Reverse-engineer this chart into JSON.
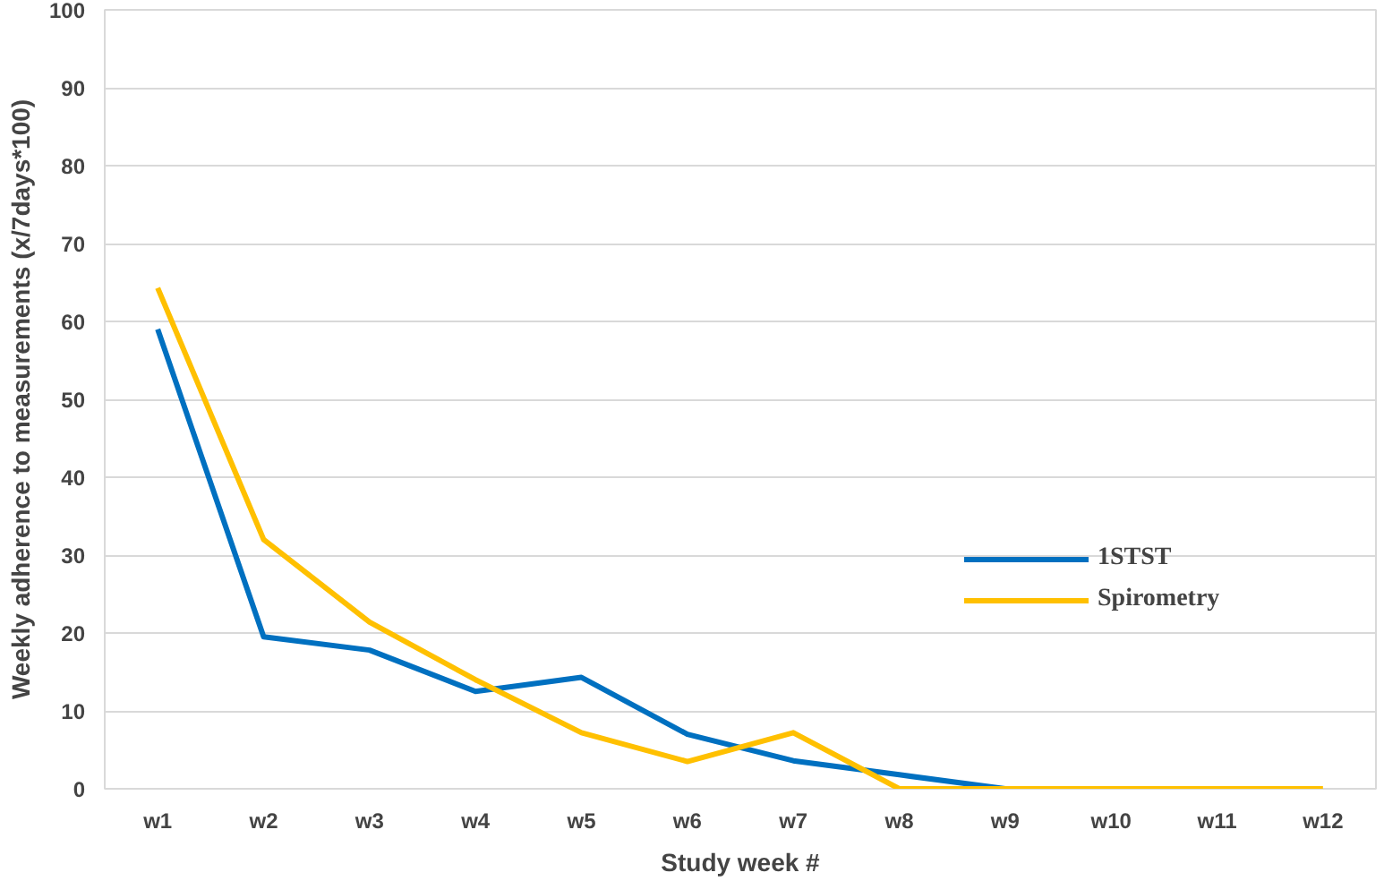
{
  "chart_data": {
    "type": "line",
    "xlabel": "Study week #",
    "ylabel": "Weekly adherence to measurements (x/7days*100)",
    "categories": [
      "w1",
      "w2",
      "w3",
      "w4",
      "w5",
      "w6",
      "w7",
      "w8",
      "w9",
      "w10",
      "w11",
      "w12"
    ],
    "series": [
      {
        "name": "1STST",
        "color": "#0070c0",
        "values": [
          59,
          19.5,
          17.8,
          12.5,
          14.3,
          7,
          3.6,
          1.8,
          0,
          null,
          null,
          null
        ]
      },
      {
        "name": "Spirometry",
        "color": "#ffc000",
        "values": [
          64.3,
          32,
          21.4,
          14,
          7.2,
          3.5,
          7.2,
          0,
          0,
          0,
          0,
          0
        ]
      }
    ],
    "ylim": [
      0,
      100
    ],
    "yticks": [
      0,
      10,
      20,
      30,
      40,
      50,
      60,
      70,
      80,
      90,
      100
    ],
    "grid": "y",
    "legend": "right",
    "line_style": "solid",
    "marker": "none"
  }
}
